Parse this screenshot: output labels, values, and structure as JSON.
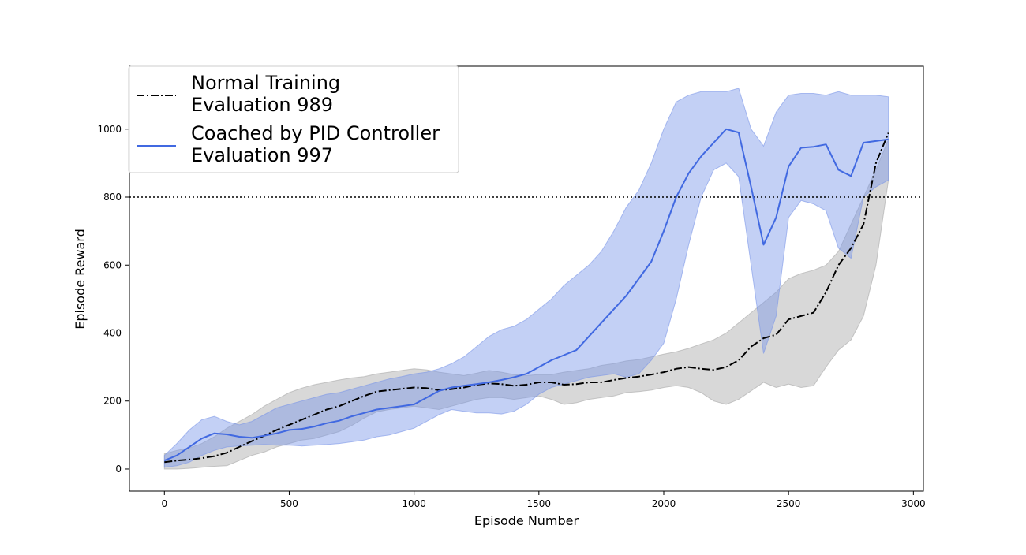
{
  "chart_data": {
    "type": "line",
    "title": "",
    "xlabel": "Episode Number",
    "ylabel": "Episode Reward",
    "xlim": [
      -140,
      3040
    ],
    "ylim": [
      -65,
      1185
    ],
    "xticks": [
      0,
      500,
      1000,
      1500,
      2000,
      2500,
      3000
    ],
    "yticks": [
      0,
      200,
      400,
      600,
      800,
      1000
    ],
    "x_tick_labels": [
      "0",
      "500",
      "1000",
      "1500",
      "2000",
      "2500",
      "3000"
    ],
    "y_tick_labels": [
      "0",
      "200",
      "400",
      "600",
      "800",
      "1000"
    ],
    "threshold": {
      "value": 800,
      "style": "dotted",
      "color": "#000000"
    },
    "legend": {
      "placement": "top-left",
      "entries": [
        {
          "line1": "Normal Training",
          "line2": "Evaluation 989",
          "style": "dashdot",
          "color": "#000000"
        },
        {
          "line1": "Coached by PID Controller",
          "line2": "Evaluation 997",
          "style": "solid",
          "color": "#4169E1"
        }
      ]
    },
    "series": [
      {
        "name": "Normal Training",
        "evaluation": 989,
        "color": "#000000",
        "band_color": "#A9A9A9",
        "line_style": "dashdot",
        "x": [
          0,
          50,
          100,
          150,
          200,
          250,
          300,
          350,
          400,
          450,
          500,
          550,
          600,
          650,
          700,
          750,
          800,
          850,
          900,
          950,
          1000,
          1050,
          1100,
          1150,
          1200,
          1250,
          1300,
          1350,
          1400,
          1450,
          1500,
          1550,
          1600,
          1650,
          1700,
          1750,
          1800,
          1850,
          1900,
          1950,
          2000,
          2050,
          2100,
          2150,
          2200,
          2250,
          2300,
          2350,
          2400,
          2450,
          2500,
          2550,
          2600,
          2650,
          2700,
          2750,
          2800,
          2850,
          2900
        ],
        "mean": [
          20,
          25,
          28,
          32,
          38,
          48,
          65,
          82,
          98,
          115,
          130,
          145,
          160,
          175,
          185,
          200,
          215,
          228,
          232,
          236,
          240,
          238,
          232,
          235,
          240,
          248,
          252,
          250,
          245,
          248,
          255,
          255,
          248,
          250,
          255,
          255,
          262,
          268,
          272,
          278,
          285,
          295,
          300,
          295,
          292,
          300,
          320,
          360,
          385,
          395,
          440,
          450,
          460,
          520,
          600,
          650,
          720,
          900,
          989
        ],
        "upper": [
          45,
          55,
          62,
          75,
          95,
          120,
          140,
          160,
          185,
          205,
          225,
          238,
          248,
          255,
          262,
          268,
          272,
          280,
          285,
          290,
          295,
          292,
          285,
          280,
          275,
          282,
          290,
          285,
          278,
          275,
          278,
          278,
          285,
          290,
          295,
          305,
          310,
          318,
          322,
          330,
          338,
          345,
          355,
          368,
          380,
          400,
          430,
          460,
          490,
          520,
          560,
          575,
          585,
          600,
          640,
          720,
          800,
          880,
          970
        ],
        "lower": [
          0,
          0,
          2,
          5,
          8,
          10,
          25,
          40,
          50,
          65,
          75,
          85,
          90,
          100,
          110,
          128,
          150,
          168,
          175,
          180,
          185,
          180,
          175,
          185,
          195,
          205,
          210,
          210,
          205,
          210,
          215,
          205,
          190,
          195,
          205,
          210,
          215,
          225,
          228,
          232,
          240,
          245,
          240,
          225,
          200,
          190,
          205,
          230,
          255,
          240,
          250,
          240,
          245,
          300,
          350,
          380,
          450,
          600,
          850
        ]
      },
      {
        "name": "Coached by PID Controller",
        "evaluation": 997,
        "color": "#4169E1",
        "band_color": "#7B96E8",
        "line_style": "solid",
        "x": [
          0,
          50,
          100,
          150,
          200,
          250,
          300,
          350,
          400,
          450,
          500,
          550,
          600,
          650,
          700,
          750,
          800,
          850,
          900,
          950,
          1000,
          1050,
          1100,
          1150,
          1200,
          1250,
          1300,
          1350,
          1400,
          1450,
          1500,
          1550,
          1600,
          1650,
          1700,
          1750,
          1800,
          1850,
          1900,
          1950,
          2000,
          2050,
          2100,
          2150,
          2200,
          2250,
          2300,
          2350,
          2400,
          2450,
          2500,
          2550,
          2600,
          2650,
          2700,
          2750,
          2800,
          2850,
          2900
        ],
        "mean": [
          25,
          40,
          65,
          90,
          105,
          102,
          95,
          92,
          98,
          105,
          115,
          118,
          125,
          135,
          142,
          155,
          165,
          175,
          180,
          185,
          190,
          210,
          230,
          240,
          245,
          250,
          255,
          262,
          270,
          280,
          300,
          320,
          335,
          350,
          390,
          430,
          470,
          510,
          560,
          610,
          700,
          800,
          870,
          920,
          960,
          1000,
          990,
          830,
          660,
          740,
          890,
          945,
          948,
          955,
          880,
          862,
          960,
          965,
          970
        ],
        "upper": [
          40,
          75,
          115,
          145,
          155,
          140,
          130,
          140,
          160,
          180,
          190,
          200,
          210,
          220,
          225,
          235,
          245,
          255,
          265,
          272,
          280,
          285,
          295,
          310,
          330,
          360,
          390,
          410,
          420,
          440,
          470,
          500,
          540,
          570,
          600,
          640,
          700,
          770,
          820,
          900,
          1000,
          1080,
          1100,
          1110,
          1110,
          1110,
          1120,
          1000,
          950,
          1050,
          1100,
          1105,
          1105,
          1100,
          1110,
          1100,
          1100,
          1100,
          1095
        ],
        "lower": [
          5,
          10,
          20,
          40,
          55,
          65,
          68,
          70,
          72,
          70,
          70,
          68,
          70,
          72,
          75,
          80,
          85,
          95,
          100,
          110,
          120,
          140,
          160,
          175,
          170,
          165,
          165,
          162,
          170,
          190,
          220,
          240,
          250,
          260,
          270,
          275,
          280,
          270,
          280,
          320,
          370,
          500,
          660,
          800,
          880,
          900,
          860,
          600,
          340,
          450,
          740,
          790,
          780,
          760,
          650,
          620,
          800,
          830,
          850
        ]
      }
    ]
  }
}
